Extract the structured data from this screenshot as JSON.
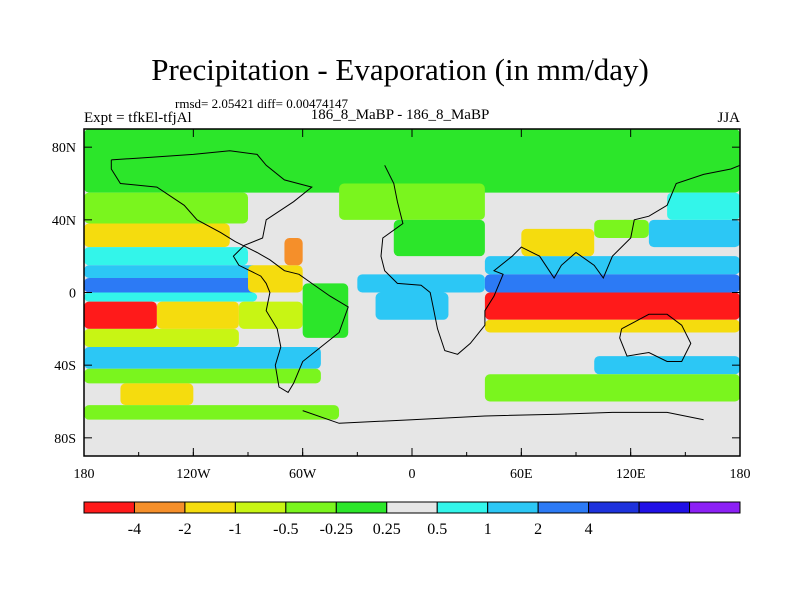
{
  "header": {
    "title": "Precipitation - Evaporation (in mm/day)",
    "stats": "rmsd= 2.05421 diff= 0.00474147",
    "experiment": "Expt = tfkEl-tfjAl",
    "period": "186_8_MaBP - 186_8_MaBP",
    "season": "JJA"
  },
  "chart_data": {
    "type": "heatmap",
    "title": "Precipitation - Evaporation (in mm/day)",
    "xlabel": "",
    "ylabel": "",
    "xlim": [
      -180,
      180
    ],
    "ylim": [
      -90,
      90
    ],
    "x_ticks": [
      {
        "value": -180,
        "label": "180"
      },
      {
        "value": -120,
        "label": "120W"
      },
      {
        "value": -60,
        "label": "60W"
      },
      {
        "value": 0,
        "label": "0"
      },
      {
        "value": 60,
        "label": "60E"
      },
      {
        "value": 120,
        "label": "120E"
      },
      {
        "value": 180,
        "label": "180"
      }
    ],
    "y_ticks": [
      {
        "value": 80,
        "label": "80N"
      },
      {
        "value": 40,
        "label": "40N"
      },
      {
        "value": 0,
        "label": "0"
      },
      {
        "value": -40,
        "label": "40S"
      },
      {
        "value": -80,
        "label": "80S"
      }
    ],
    "colorbar": {
      "colors": [
        "#ff1a1a",
        "#f58f2a",
        "#f5dc0e",
        "#c8f514",
        "#7af51e",
        "#2ce62a",
        "#e6e6e6",
        "#33f5ea",
        "#2cc7f5",
        "#2c7af5",
        "#1e32dc",
        "#2010e6",
        "#8c20f5"
      ],
      "levels": [
        -4,
        -2,
        -1,
        -0.5,
        -0.25,
        0.25,
        0.5,
        1,
        2,
        4
      ],
      "labels": [
        "-4",
        "-2",
        "-1",
        "-0.5",
        "-0.25",
        "0.25",
        "0.5",
        "1",
        "2",
        "4"
      ]
    },
    "field_bands": [
      {
        "lon": [
          -180,
          180
        ],
        "lat": [
          55,
          90
        ],
        "value": 0
      },
      {
        "lon": [
          -180,
          -90
        ],
        "lat": [
          38,
          55
        ],
        "value": -0.4
      },
      {
        "lon": [
          -180,
          -100
        ],
        "lat": [
          25,
          38
        ],
        "value": -1.2
      },
      {
        "lon": [
          -180,
          -90
        ],
        "lat": [
          15,
          25
        ],
        "value": 0.8
      },
      {
        "lon": [
          -180,
          -85
        ],
        "lat": [
          8,
          15
        ],
        "value": 1.5
      },
      {
        "lon": [
          -180,
          -80
        ],
        "lat": [
          0,
          8
        ],
        "value": 3
      },
      {
        "lon": [
          -180,
          -85
        ],
        "lat": [
          -5,
          0
        ],
        "value": 0.8
      },
      {
        "lon": [
          -180,
          -140
        ],
        "lat": [
          -20,
          -5
        ],
        "value": -4.5
      },
      {
        "lon": [
          -140,
          -95
        ],
        "lat": [
          -20,
          -5
        ],
        "value": -2
      },
      {
        "lon": [
          -95,
          -60
        ],
        "lat": [
          -20,
          -5
        ],
        "value": -0.6
      },
      {
        "lon": [
          -180,
          -95
        ],
        "lat": [
          -30,
          -20
        ],
        "value": -0.6
      },
      {
        "lon": [
          -180,
          -50
        ],
        "lat": [
          -42,
          -30
        ],
        "value": 1.2
      },
      {
        "lon": [
          -180,
          -50
        ],
        "lat": [
          -50,
          -42
        ],
        "value": -0.4
      },
      {
        "lon": [
          -160,
          -120
        ],
        "lat": [
          -62,
          -50
        ],
        "value": -1.2
      },
      {
        "lon": [
          -180,
          -40
        ],
        "lat": [
          -70,
          -62
        ],
        "value": -0.3
      },
      {
        "lon": [
          -90,
          -60
        ],
        "lat": [
          0,
          15
        ],
        "value": -1.5
      },
      {
        "lon": [
          -70,
          -60
        ],
        "lat": [
          15,
          30
        ],
        "value": -2.5
      },
      {
        "lon": [
          -60,
          -35
        ],
        "lat": [
          -25,
          5
        ],
        "value": 0
      },
      {
        "lon": [
          -30,
          40
        ],
        "lat": [
          0,
          10
        ],
        "value": 1.5
      },
      {
        "lon": [
          -20,
          20
        ],
        "lat": [
          -15,
          0
        ],
        "value": 1.2
      },
      {
        "lon": [
          -40,
          40
        ],
        "lat": [
          40,
          60
        ],
        "value": -0.4
      },
      {
        "lon": [
          -10,
          40
        ],
        "lat": [
          20,
          40
        ],
        "value": 0
      },
      {
        "lon": [
          40,
          180
        ],
        "lat": [
          10,
          20
        ],
        "value": 1.5
      },
      {
        "lon": [
          40,
          180
        ],
        "lat": [
          0,
          10
        ],
        "value": 3
      },
      {
        "lon": [
          40,
          180
        ],
        "lat": [
          -15,
          0
        ],
        "value": -4.5
      },
      {
        "lon": [
          40,
          180
        ],
        "lat": [
          -22,
          -15
        ],
        "value": -1.2
      },
      {
        "lon": [
          40,
          180
        ],
        "lat": [
          -35,
          -22
        ],
        "value": 0.4
      },
      {
        "lon": [
          100,
          180
        ],
        "lat": [
          -45,
          -35
        ],
        "value": 1.5
      },
      {
        "lon": [
          60,
          100
        ],
        "lat": [
          20,
          35
        ],
        "value": -1.5
      },
      {
        "lon": [
          100,
          130
        ],
        "lat": [
          30,
          40
        ],
        "value": -0.4
      },
      {
        "lon": [
          130,
          180
        ],
        "lat": [
          25,
          40
        ],
        "value": 1.2
      },
      {
        "lon": [
          140,
          180
        ],
        "lat": [
          40,
          55
        ],
        "value": 0.6
      },
      {
        "lon": [
          40,
          180
        ],
        "lat": [
          -60,
          -45
        ],
        "value": -0.4
      },
      {
        "lon": [
          -40,
          40
        ],
        "lat": [
          -75,
          -60
        ],
        "value": 0.3
      }
    ]
  }
}
